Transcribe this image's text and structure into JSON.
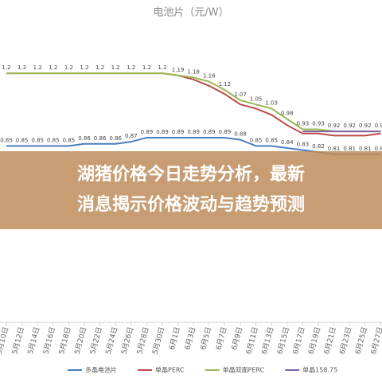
{
  "chart_data": {
    "type": "line",
    "title": "电池片（元/W）",
    "categories": [
      "5月10日",
      "5月12日",
      "5月14日",
      "5月16日",
      "5月18日",
      "5月20日",
      "5月22日",
      "5月24日",
      "5月26日",
      "5月28日",
      "5月30日",
      "6月1日",
      "6月3日",
      "6月5日",
      "6月7日",
      "6月9日",
      "6月11日",
      "6月13日",
      "6月15日",
      "6月17日",
      "6月19日",
      "6月21日",
      "6月23日",
      "6月25日",
      "6月27日"
    ],
    "series": [
      {
        "name": "多晶电池片",
        "color": "#4a7ebb",
        "values": [
          0.85,
          0.85,
          0.85,
          0.85,
          0.85,
          0.86,
          0.86,
          0.86,
          0.87,
          0.89,
          0.89,
          0.89,
          0.89,
          0.89,
          0.89,
          0.88,
          0.85,
          0.85,
          0.84,
          0.83,
          0.82,
          0.81,
          0.81,
          0.81,
          0.81
        ]
      },
      {
        "name": "单晶PERC",
        "color": "#be4b48",
        "values": [
          1.2,
          1.2,
          1.2,
          1.2,
          1.2,
          1.2,
          1.2,
          1.2,
          1.2,
          1.2,
          1.2,
          1.19,
          1.17,
          1.14,
          1.1,
          1.05,
          1.03,
          1.0,
          0.95,
          0.91,
          0.91,
          0.9,
          0.9,
          0.9,
          0.91
        ]
      },
      {
        "name": "单晶双面PERC",
        "color": "#98b954",
        "values": [
          1.2,
          1.2,
          1.2,
          1.2,
          1.2,
          1.2,
          1.2,
          1.2,
          1.2,
          1.2,
          1.2,
          1.19,
          1.18,
          1.16,
          1.12,
          1.07,
          1.05,
          1.03,
          0.98,
          0.93,
          0.93,
          0.92,
          0.92,
          0.92,
          0.92
        ]
      },
      {
        "name": "单晶158.75",
        "color": "#7d60a0",
        "values": [
          null,
          null,
          null,
          null,
          null,
          null,
          null,
          null,
          null,
          null,
          null,
          null,
          null,
          null,
          null,
          null,
          null,
          null,
          null,
          0.92,
          0.92,
          0.92,
          0.92,
          0.92,
          0.92
        ]
      }
    ],
    "ylim": [
      0,
      1.4
    ],
    "banner": [
      "湖猪价格今日走势分析，最新",
      "消息揭示价格波动与趋势预测"
    ]
  }
}
